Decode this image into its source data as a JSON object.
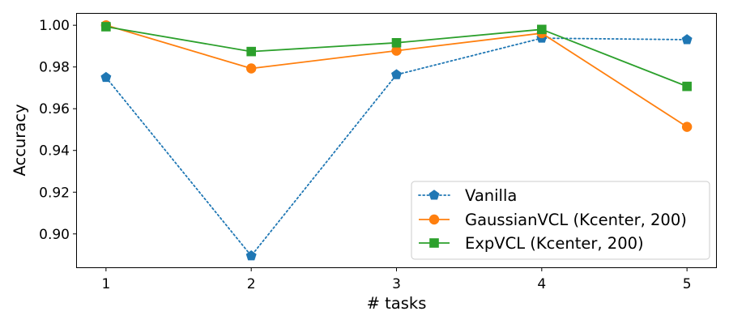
{
  "chart_data": {
    "type": "line",
    "title": "",
    "xlabel": "# tasks",
    "ylabel": "Accuracy",
    "x": [
      1,
      2,
      3,
      4,
      5
    ],
    "xlim": [
      0.8,
      5.2
    ],
    "ylim": [
      0.884,
      1.0055
    ],
    "yticks": [
      0.9,
      0.92,
      0.94,
      0.96,
      0.98,
      1.0
    ],
    "ytick_labels": [
      "0.90",
      "0.92",
      "0.94",
      "0.96",
      "0.98",
      "1.00"
    ],
    "xtick_labels": [
      "1",
      "2",
      "3",
      "4",
      "5"
    ],
    "grid": false,
    "legend_position": "bottom-right",
    "series": [
      {
        "name": "Vanilla",
        "values": [
          0.975,
          0.8895,
          0.9763,
          0.9938,
          0.9931
        ],
        "color": "#1f77b4",
        "line_style": "dotted",
        "marker": "pentagon"
      },
      {
        "name": "GaussianVCL (Kcenter, 200)",
        "values": [
          1.0,
          0.9793,
          0.9878,
          0.9962,
          0.9513
        ],
        "color": "#ff7f0e",
        "line_style": "solid",
        "marker": "circle"
      },
      {
        "name": "ExpVCL (Kcenter, 200)",
        "values": [
          0.9993,
          0.9874,
          0.9916,
          0.998,
          0.9707
        ],
        "color": "#2ca02c",
        "line_style": "solid",
        "marker": "square"
      }
    ]
  }
}
